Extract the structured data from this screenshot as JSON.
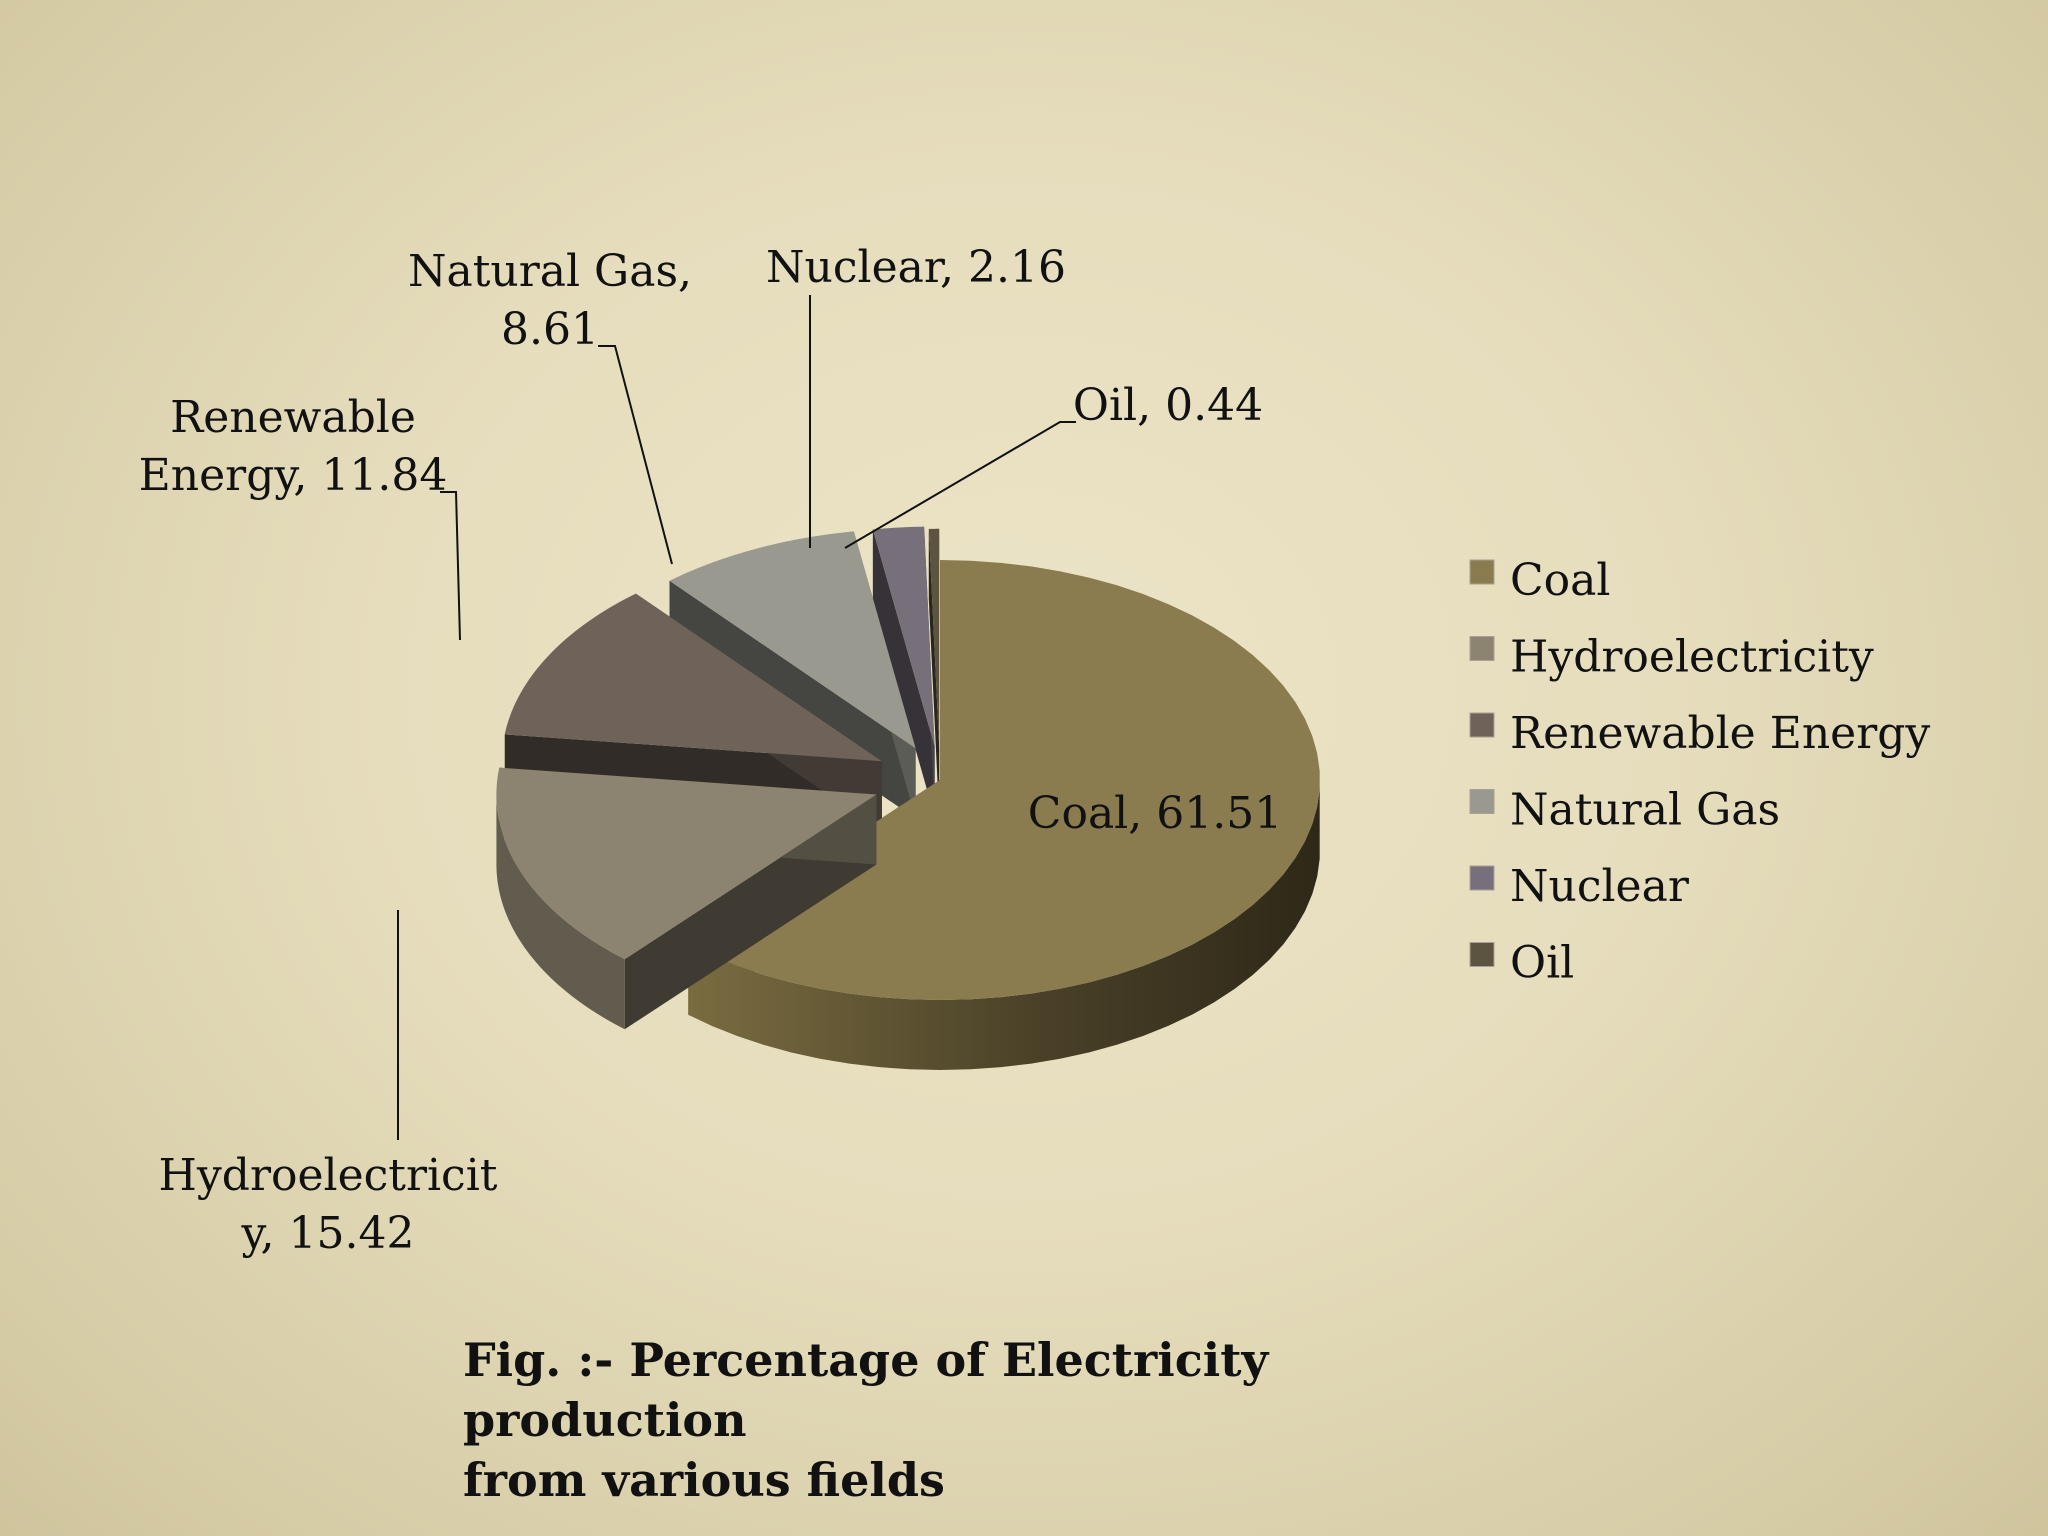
{
  "chart_data": {
    "type": "pie",
    "style": "3d-exploded",
    "categories": [
      "Coal",
      "Hydroelectricity",
      "Renewable Energy",
      "Natural Gas",
      "Nuclear",
      "Oil"
    ],
    "values": [
      61.51,
      15.42,
      11.84,
      8.61,
      2.16,
      0.44
    ],
    "data_labels": [
      [
        "Coal, 61.51"
      ],
      [
        "Hydroelectricit",
        "y, 15.42"
      ],
      [
        "Renewable",
        "Energy, 11.84"
      ],
      [
        "Natural Gas,",
        "8.61"
      ],
      [
        "Nuclear, 2.16"
      ],
      [
        "Oil, 0.44"
      ]
    ],
    "colors": [
      "#8a7c4e",
      "#8c8370",
      "#6e6259",
      "#999990",
      "#77707a",
      "#5c5440"
    ],
    "legend": {
      "position": "right",
      "entries": [
        "Coal",
        "Hydroelectricity",
        "Renewable Energy",
        "Natural Gas",
        "Nuclear",
        "Oil"
      ]
    }
  },
  "caption": {
    "line1": "Fig. :- Percentage of Electricity production",
    "line2": "from various fields"
  }
}
